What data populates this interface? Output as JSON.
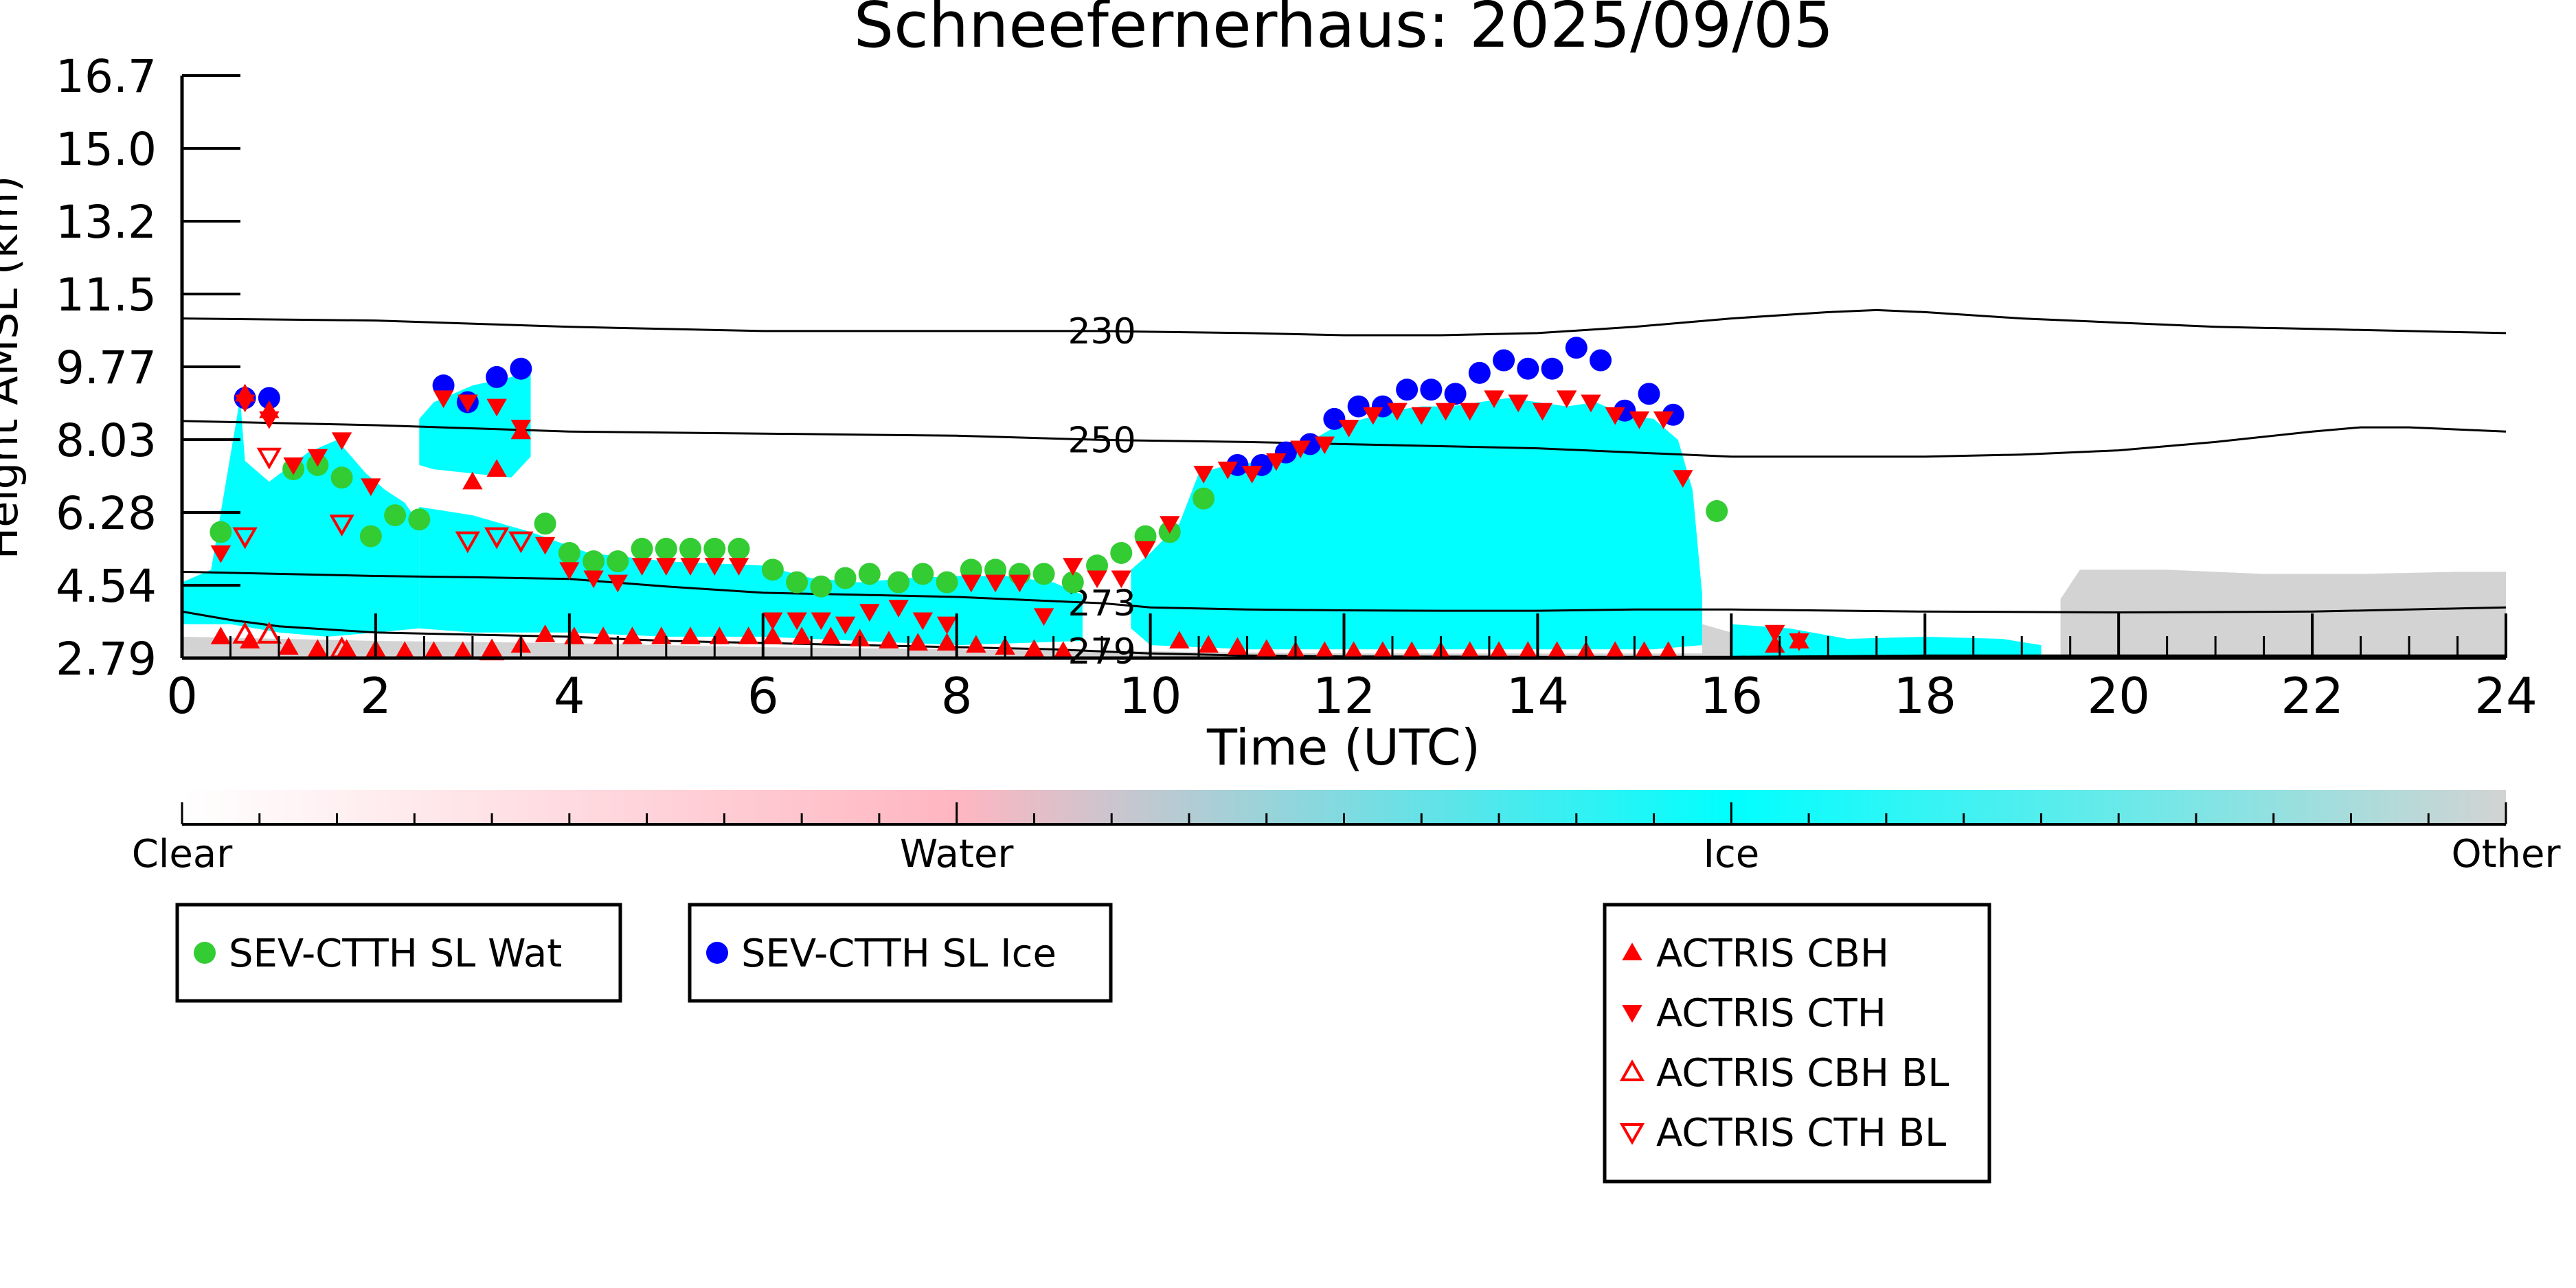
{
  "chart_data": {
    "type": "scatter",
    "title": "Schneefernerhaus: 2025/09/05",
    "xlabel": "Time (UTC)",
    "ylabel": "Height AMSL (km)",
    "xlim": [
      0,
      24
    ],
    "ylim": [
      2.79,
      16.7
    ],
    "x_ticks": [
      "0",
      "2",
      "4",
      "6",
      "8",
      "10",
      "12",
      "14",
      "16",
      "18",
      "20",
      "22",
      "24"
    ],
    "y_ticks": [
      "2.79",
      "4.54",
      "6.28",
      "8.03",
      "9.77",
      "11.5",
      "13.2",
      "15.0",
      "16.7"
    ],
    "colors": {
      "water_marker": "#33cc33",
      "ice_marker": "#0000ff",
      "actris_marker": "#ff0000",
      "ice_fill": "#00ffff",
      "other_fill": "#d3d3d3",
      "water_fill": "#ffb6c1"
    },
    "colorbar": {
      "labels": [
        "Clear",
        "Water",
        "Ice",
        "Other"
      ],
      "stops": [
        "#ffffff",
        "#ffb6c1",
        "#00ffff",
        "#d3d3d3"
      ]
    },
    "contours": [
      {
        "label": "230",
        "label_x": 9.5,
        "x": [
          0,
          2,
          4,
          6,
          8,
          9.5,
          11,
          12,
          13,
          14,
          15,
          16,
          17,
          17.5,
          18,
          19,
          20,
          21,
          22,
          23,
          24
        ],
        "y": [
          10.9,
          10.85,
          10.7,
          10.6,
          10.6,
          10.6,
          10.55,
          10.5,
          10.5,
          10.55,
          10.7,
          10.9,
          11.05,
          11.1,
          11.05,
          10.9,
          10.8,
          10.7,
          10.65,
          10.6,
          10.55
        ]
      },
      {
        "label": "250",
        "label_x": 9.5,
        "x": [
          0,
          2,
          4,
          6,
          8,
          9.5,
          11,
          12,
          13,
          14,
          15,
          16,
          17,
          18,
          19,
          20,
          21,
          22,
          22.5,
          23,
          24
        ],
        "y": [
          8.45,
          8.35,
          8.2,
          8.15,
          8.1,
          8.0,
          7.95,
          7.9,
          7.85,
          7.8,
          7.7,
          7.6,
          7.6,
          7.6,
          7.65,
          7.75,
          7.95,
          8.2,
          8.3,
          8.3,
          8.2
        ]
      },
      {
        "label": "273",
        "label_x": 9.5,
        "x": [
          0,
          2,
          3,
          4,
          5,
          6,
          7,
          8,
          9,
          9.5,
          10,
          11,
          12,
          13,
          14,
          15,
          16,
          18,
          20,
          22,
          24
        ],
        "y": [
          4.85,
          4.75,
          4.72,
          4.68,
          4.5,
          4.35,
          4.3,
          4.25,
          4.15,
          4.1,
          4.0,
          3.95,
          3.93,
          3.92,
          3.92,
          3.95,
          3.95,
          3.9,
          3.88,
          3.9,
          4.0
        ]
      },
      {
        "label": "279",
        "label_x": 9.5,
        "x": [
          0,
          0.5,
          1,
          2,
          3,
          4,
          5,
          6,
          7,
          8,
          9,
          9.5,
          10,
          11,
          12,
          14,
          16,
          18,
          20,
          22,
          24
        ],
        "y": [
          3.9,
          3.7,
          3.55,
          3.4,
          3.35,
          3.3,
          3.2,
          3.15,
          3.1,
          3.05,
          3.0,
          2.95,
          2.9,
          2.85,
          2.83,
          2.82,
          2.82,
          2.85,
          2.85,
          2.85,
          2.85
        ]
      }
    ],
    "ice_mask": [
      {
        "x": [
          0,
          0.3,
          0.6,
          0.65,
          0.9,
          1.3,
          1.6,
          1.9,
          2.1,
          2.3,
          2.45,
          2.45,
          2.0,
          1.5,
          1.0,
          0.5,
          0
        ],
        "y": [
          4.6,
          4.9,
          9.0,
          7.5,
          7.0,
          7.7,
          8.0,
          7.2,
          6.8,
          6.5,
          6.0,
          3.5,
          3.4,
          3.3,
          3.4,
          3.6,
          3.6
        ]
      },
      {
        "x": [
          2.45,
          2.6,
          3.0,
          3.4,
          3.6,
          3.6,
          3.4,
          3.0,
          2.6,
          2.45
        ],
        "y": [
          8.5,
          8.9,
          9.3,
          9.5,
          9.7,
          7.6,
          7.1,
          7.2,
          7.3,
          7.4
        ]
      },
      {
        "x": [
          2.45,
          3.0,
          3.6,
          4.2,
          5.0,
          6.0,
          6.5,
          7.0,
          7.5,
          8.0,
          8.5,
          9.0,
          9.3,
          9.3,
          8.0,
          7.0,
          6.0,
          5.0,
          4.0,
          3.0,
          2.45
        ],
        "y": [
          6.4,
          6.2,
          5.8,
          5.3,
          5.1,
          5.0,
          4.7,
          4.6,
          4.7,
          4.75,
          4.75,
          4.6,
          4.3,
          3.2,
          3.1,
          3.2,
          3.3,
          3.3,
          3.4,
          3.4,
          3.5
        ]
      },
      {
        "x": [
          9.8,
          10.0,
          10.3,
          10.5,
          10.8,
          11.3,
          11.6,
          11.9,
          12.2,
          12.5,
          12.8,
          13.1,
          13.4,
          13.7,
          14.0,
          14.3,
          14.6,
          14.9,
          15.2,
          15.45,
          15.6,
          15.7,
          15.7,
          15.2,
          14.0,
          12.0,
          11.0,
          10.0,
          9.8
        ],
        "y": [
          4.9,
          5.3,
          6.0,
          7.2,
          7.4,
          7.5,
          7.9,
          8.3,
          8.5,
          8.7,
          8.8,
          8.8,
          8.9,
          9.0,
          8.9,
          8.8,
          8.9,
          8.6,
          8.5,
          8.0,
          6.8,
          4.3,
          3.1,
          3.0,
          3.0,
          3.0,
          3.0,
          3.1,
          3.5
        ]
      },
      {
        "x": [
          16.0,
          16.6,
          17.2,
          18.0,
          18.8,
          19.2,
          19.2,
          18.0,
          17.0,
          16.0
        ],
        "y": [
          3.6,
          3.5,
          3.25,
          3.3,
          3.25,
          3.1,
          2.79,
          2.79,
          2.79,
          2.79
        ]
      }
    ],
    "other_mask": [
      {
        "x": [
          19.4,
          19.6,
          20.5,
          21.5,
          22.5,
          23.5,
          24,
          24,
          19.4
        ],
        "y": [
          4.2,
          4.9,
          4.9,
          4.8,
          4.8,
          4.85,
          4.85,
          2.79,
          2.79
        ]
      },
      {
        "x": [
          0,
          2,
          4,
          6,
          8,
          10,
          12,
          14,
          15.7,
          15.7,
          0
        ],
        "y": [
          3.3,
          3.2,
          3.15,
          3.05,
          3.0,
          2.95,
          2.9,
          2.9,
          2.9,
          2.79,
          2.79
        ]
      },
      {
        "x": [
          15.7,
          16.0,
          16.2,
          16.0,
          15.7
        ],
        "y": [
          3.6,
          3.4,
          3.0,
          2.79,
          2.79
        ]
      }
    ],
    "series": [
      {
        "name": "SEV-CTTH SL Wat",
        "marker": "circle",
        "color": "#33cc33",
        "x": [
          0.4,
          1.15,
          1.4,
          1.65,
          1.95,
          2.2,
          2.45,
          3.75,
          4.0,
          4.25,
          4.5,
          4.75,
          5.0,
          5.25,
          5.5,
          5.75,
          6.1,
          6.35,
          6.6,
          6.85,
          7.1,
          7.4,
          7.65,
          7.9,
          8.15,
          8.4,
          8.65,
          8.9,
          9.2,
          9.45,
          9.7,
          9.95,
          10.2,
          10.55,
          15.85
        ],
        "y": [
          5.8,
          7.3,
          7.4,
          7.1,
          5.7,
          6.2,
          6.1,
          6.0,
          5.3,
          5.1,
          5.1,
          5.4,
          5.4,
          5.4,
          5.4,
          5.4,
          4.9,
          4.6,
          4.5,
          4.7,
          4.8,
          4.6,
          4.8,
          4.6,
          4.9,
          4.9,
          4.8,
          4.8,
          4.6,
          5.0,
          5.3,
          5.7,
          5.8,
          6.6,
          6.3
        ]
      },
      {
        "name": "SEV-CTTH SL Ice",
        "marker": "circle",
        "color": "#0000ff",
        "x": [
          0.65,
          0.9,
          2.7,
          2.95,
          3.25,
          3.5,
          10.9,
          11.15,
          11.4,
          11.65,
          11.9,
          12.15,
          12.4,
          12.65,
          12.9,
          13.15,
          13.4,
          13.65,
          13.9,
          14.15,
          14.4,
          14.65,
          14.9,
          15.15,
          15.4
        ],
        "y": [
          9.0,
          9.0,
          9.3,
          8.9,
          9.5,
          9.7,
          7.4,
          7.4,
          7.7,
          7.9,
          8.5,
          8.8,
          8.8,
          9.2,
          9.2,
          9.1,
          9.6,
          9.9,
          9.7,
          9.7,
          10.2,
          9.9,
          8.7,
          9.1,
          8.6
        ]
      },
      {
        "name": "ACTRIS CBH",
        "marker": "triangle-up",
        "color": "#ff0000",
        "x": [
          0.65,
          0.9,
          3.0,
          3.25,
          3.5,
          0.4,
          0.7,
          1.1,
          1.4,
          1.7,
          2.0,
          2.3,
          2.6,
          2.9,
          3.2,
          3.5,
          3.75,
          4.05,
          4.35,
          4.65,
          4.95,
          5.25,
          5.55,
          5.85,
          6.1,
          6.4,
          6.7,
          7.0,
          7.3,
          7.6,
          7.9,
          8.2,
          8.5,
          8.8,
          9.1,
          10.3,
          10.6,
          10.9,
          11.2,
          11.5,
          11.8,
          12.1,
          12.4,
          12.7,
          13.0,
          13.3,
          13.6,
          13.9,
          14.2,
          14.5,
          14.8,
          15.1,
          15.35,
          16.45,
          16.7
        ],
        "y": [
          9.1,
          8.7,
          7.0,
          7.3,
          8.2,
          3.3,
          3.2,
          3.05,
          3.0,
          3.0,
          3.0,
          2.95,
          2.95,
          2.95,
          2.95,
          3.1,
          3.35,
          3.3,
          3.3,
          3.3,
          3.3,
          3.3,
          3.3,
          3.3,
          3.3,
          3.3,
          3.3,
          3.25,
          3.2,
          3.15,
          3.15,
          3.1,
          3.05,
          3.0,
          2.95,
          3.2,
          3.1,
          3.05,
          3.0,
          2.95,
          2.95,
          2.95,
          2.95,
          2.95,
          2.95,
          2.95,
          2.95,
          2.95,
          2.95,
          2.95,
          2.95,
          2.95,
          2.95,
          3.1,
          3.2
        ]
      },
      {
        "name": "ACTRIS CTH",
        "marker": "triangle-down",
        "color": "#ff0000",
        "x": [
          0.4,
          0.65,
          0.9,
          1.15,
          1.4,
          1.65,
          1.95,
          2.7,
          2.95,
          3.25,
          3.5,
          3.75,
          4.0,
          4.25,
          4.5,
          4.75,
          5.0,
          5.25,
          5.5,
          5.75,
          6.1,
          6.35,
          6.6,
          6.85,
          7.1,
          7.4,
          7.65,
          7.9,
          8.15,
          8.4,
          8.65,
          8.9,
          9.2,
          9.45,
          9.7,
          9.95,
          10.2,
          10.55,
          10.8,
          11.05,
          11.3,
          11.55,
          11.8,
          12.05,
          12.3,
          12.55,
          12.8,
          13.05,
          13.3,
          13.55,
          13.8,
          14.05,
          14.3,
          14.55,
          14.8,
          15.05,
          15.3,
          15.5,
          16.45,
          16.7
        ],
        "y": [
          5.3,
          8.9,
          8.5,
          7.4,
          7.6,
          8.0,
          6.9,
          9.0,
          8.9,
          8.8,
          8.3,
          5.5,
          4.9,
          4.7,
          4.6,
          5.0,
          5.0,
          5.0,
          5.0,
          5.0,
          3.7,
          3.7,
          3.7,
          3.6,
          3.9,
          4.0,
          3.7,
          3.6,
          4.6,
          4.6,
          4.6,
          3.8,
          5.0,
          4.7,
          4.7,
          5.4,
          6.0,
          7.2,
          7.3,
          7.2,
          7.5,
          7.8,
          7.9,
          8.3,
          8.6,
          8.7,
          8.6,
          8.7,
          8.7,
          9.0,
          8.9,
          8.7,
          9.0,
          8.9,
          8.6,
          8.5,
          8.5,
          7.1,
          3.4,
          3.2
        ]
      },
      {
        "name": "ACTRIS CBH BL",
        "marker": "triangle-up-open",
        "color": "#ff0000",
        "x": [
          0.65,
          0.9,
          1.65,
          3.2
        ],
        "y": [
          3.35,
          3.35,
          3.0,
          2.95
        ]
      },
      {
        "name": "ACTRIS CTH BL",
        "marker": "triangle-down-open",
        "color": "#ff0000",
        "x": [
          0.65,
          0.9,
          1.65,
          2.95,
          3.25,
          3.5
        ],
        "y": [
          5.7,
          7.6,
          6.0,
          5.6,
          5.7,
          5.6
        ]
      }
    ],
    "legends": [
      {
        "entries": [
          "SEV-CTTH SL Wat"
        ]
      },
      {
        "entries": [
          "SEV-CTTH SL Ice"
        ]
      },
      {
        "entries": [
          "ACTRIS CBH",
          "ACTRIS CTH",
          "ACTRIS CBH BL",
          "ACTRIS CTH BL"
        ]
      }
    ]
  }
}
